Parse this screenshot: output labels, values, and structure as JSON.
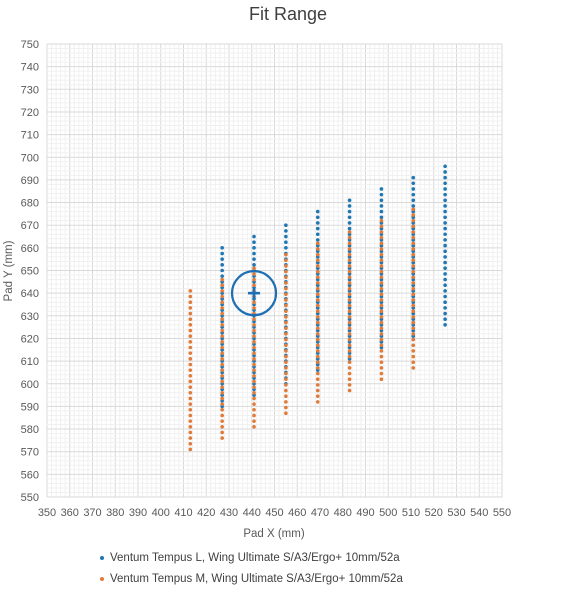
{
  "chart_data": {
    "type": "scatter",
    "title": "Fit Range",
    "xlabel": "Pad X (mm)",
    "ylabel": "Pad Y (mm)",
    "xlim": [
      350,
      550
    ],
    "ylim": [
      550,
      750
    ],
    "x_major_step": 10,
    "y_major_step": 10,
    "grid": true,
    "legend_position": "bottom",
    "series": [
      {
        "name": "Ventum Tempus L, Wing Ultimate S/A3/Ergo+ 10mm/52a",
        "color": "#1f77b4",
        "columns": [
          {
            "x": 427,
            "y_min": 590,
            "y_max": 660
          },
          {
            "x": 441,
            "y_min": 595,
            "y_max": 665
          },
          {
            "x": 455,
            "y_min": 600,
            "y_max": 670
          },
          {
            "x": 469,
            "y_min": 606,
            "y_max": 676
          },
          {
            "x": 483,
            "y_min": 611,
            "y_max": 681
          },
          {
            "x": 497,
            "y_min": 616,
            "y_max": 686
          },
          {
            "x": 511,
            "y_min": 621,
            "y_max": 691
          },
          {
            "x": 525,
            "y_min": 626,
            "y_max": 696
          }
        ]
      },
      {
        "name": "Ventum Tempus M, Wing Ultimate S/A3/Ergo+ 10mm/52a",
        "color": "#e07b39",
        "columns": [
          {
            "x": 413,
            "y_min": 571,
            "y_max": 641
          },
          {
            "x": 427,
            "y_min": 576,
            "y_max": 646
          },
          {
            "x": 441,
            "y_min": 581,
            "y_max": 651
          },
          {
            "x": 455,
            "y_min": 587,
            "y_max": 657
          },
          {
            "x": 469,
            "y_min": 592,
            "y_max": 662
          },
          {
            "x": 483,
            "y_min": 597,
            "y_max": 667
          },
          {
            "x": 497,
            "y_min": 602,
            "y_max": 672
          },
          {
            "x": 511,
            "y_min": 607,
            "y_max": 677
          }
        ]
      }
    ],
    "marker": {
      "x": 441,
      "y": 640,
      "color": "#1f6fb4"
    }
  }
}
